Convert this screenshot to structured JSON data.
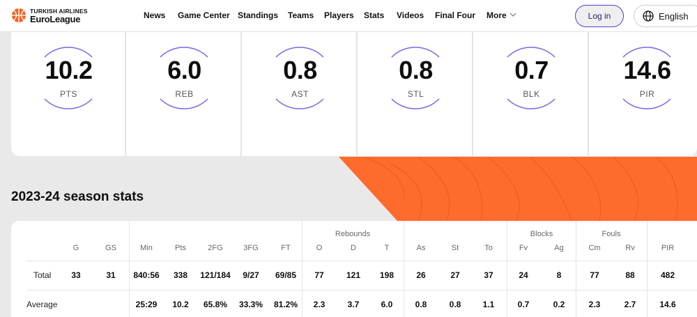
{
  "header": {
    "logo_line1": "TURKISH AIRLINES",
    "logo_line2": "EuroLeague",
    "nav": [
      "News",
      "Game Center",
      "Standings",
      "Teams",
      "Players",
      "Stats",
      "Videos",
      "Final Four",
      "More"
    ],
    "login_label": "Log in",
    "language": "English",
    "brand_color": "#f26522",
    "accent_color": "#5b38d6"
  },
  "averages": [
    {
      "value": "10.2",
      "label": "PTS"
    },
    {
      "value": "6.0",
      "label": "REB"
    },
    {
      "value": "0.8",
      "label": "AST"
    },
    {
      "value": "0.8",
      "label": "STL"
    },
    {
      "value": "0.7",
      "label": "BLK"
    },
    {
      "value": "14.6",
      "label": "PIR"
    }
  ],
  "season_title": "2023-24 season stats",
  "table": {
    "groups": [
      "Rebounds",
      "Blocks",
      "Fouls"
    ],
    "headers": [
      "G",
      "GS",
      "Min",
      "Pts",
      "2FG",
      "3FG",
      "FT",
      "O",
      "D",
      "T",
      "As",
      "St",
      "To",
      "Fv",
      "Ag",
      "Cm",
      "Rv",
      "PIR"
    ],
    "rows": [
      {
        "label": "Total",
        "cells": [
          "33",
          "31",
          "840:56",
          "338",
          "121/184",
          "9/27",
          "69/85",
          "77",
          "121",
          "198",
          "26",
          "27",
          "37",
          "24",
          "8",
          "77",
          "88",
          "482"
        ]
      },
      {
        "label": "Average",
        "cells": [
          "",
          "",
          "25:29",
          "10.2",
          "65.8%",
          "33.3%",
          "81.2%",
          "2.3",
          "3.7",
          "6.0",
          "0.8",
          "0.8",
          "1.1",
          "0.7",
          "0.2",
          "2.3",
          "2.7",
          "14.6"
        ]
      }
    ]
  }
}
